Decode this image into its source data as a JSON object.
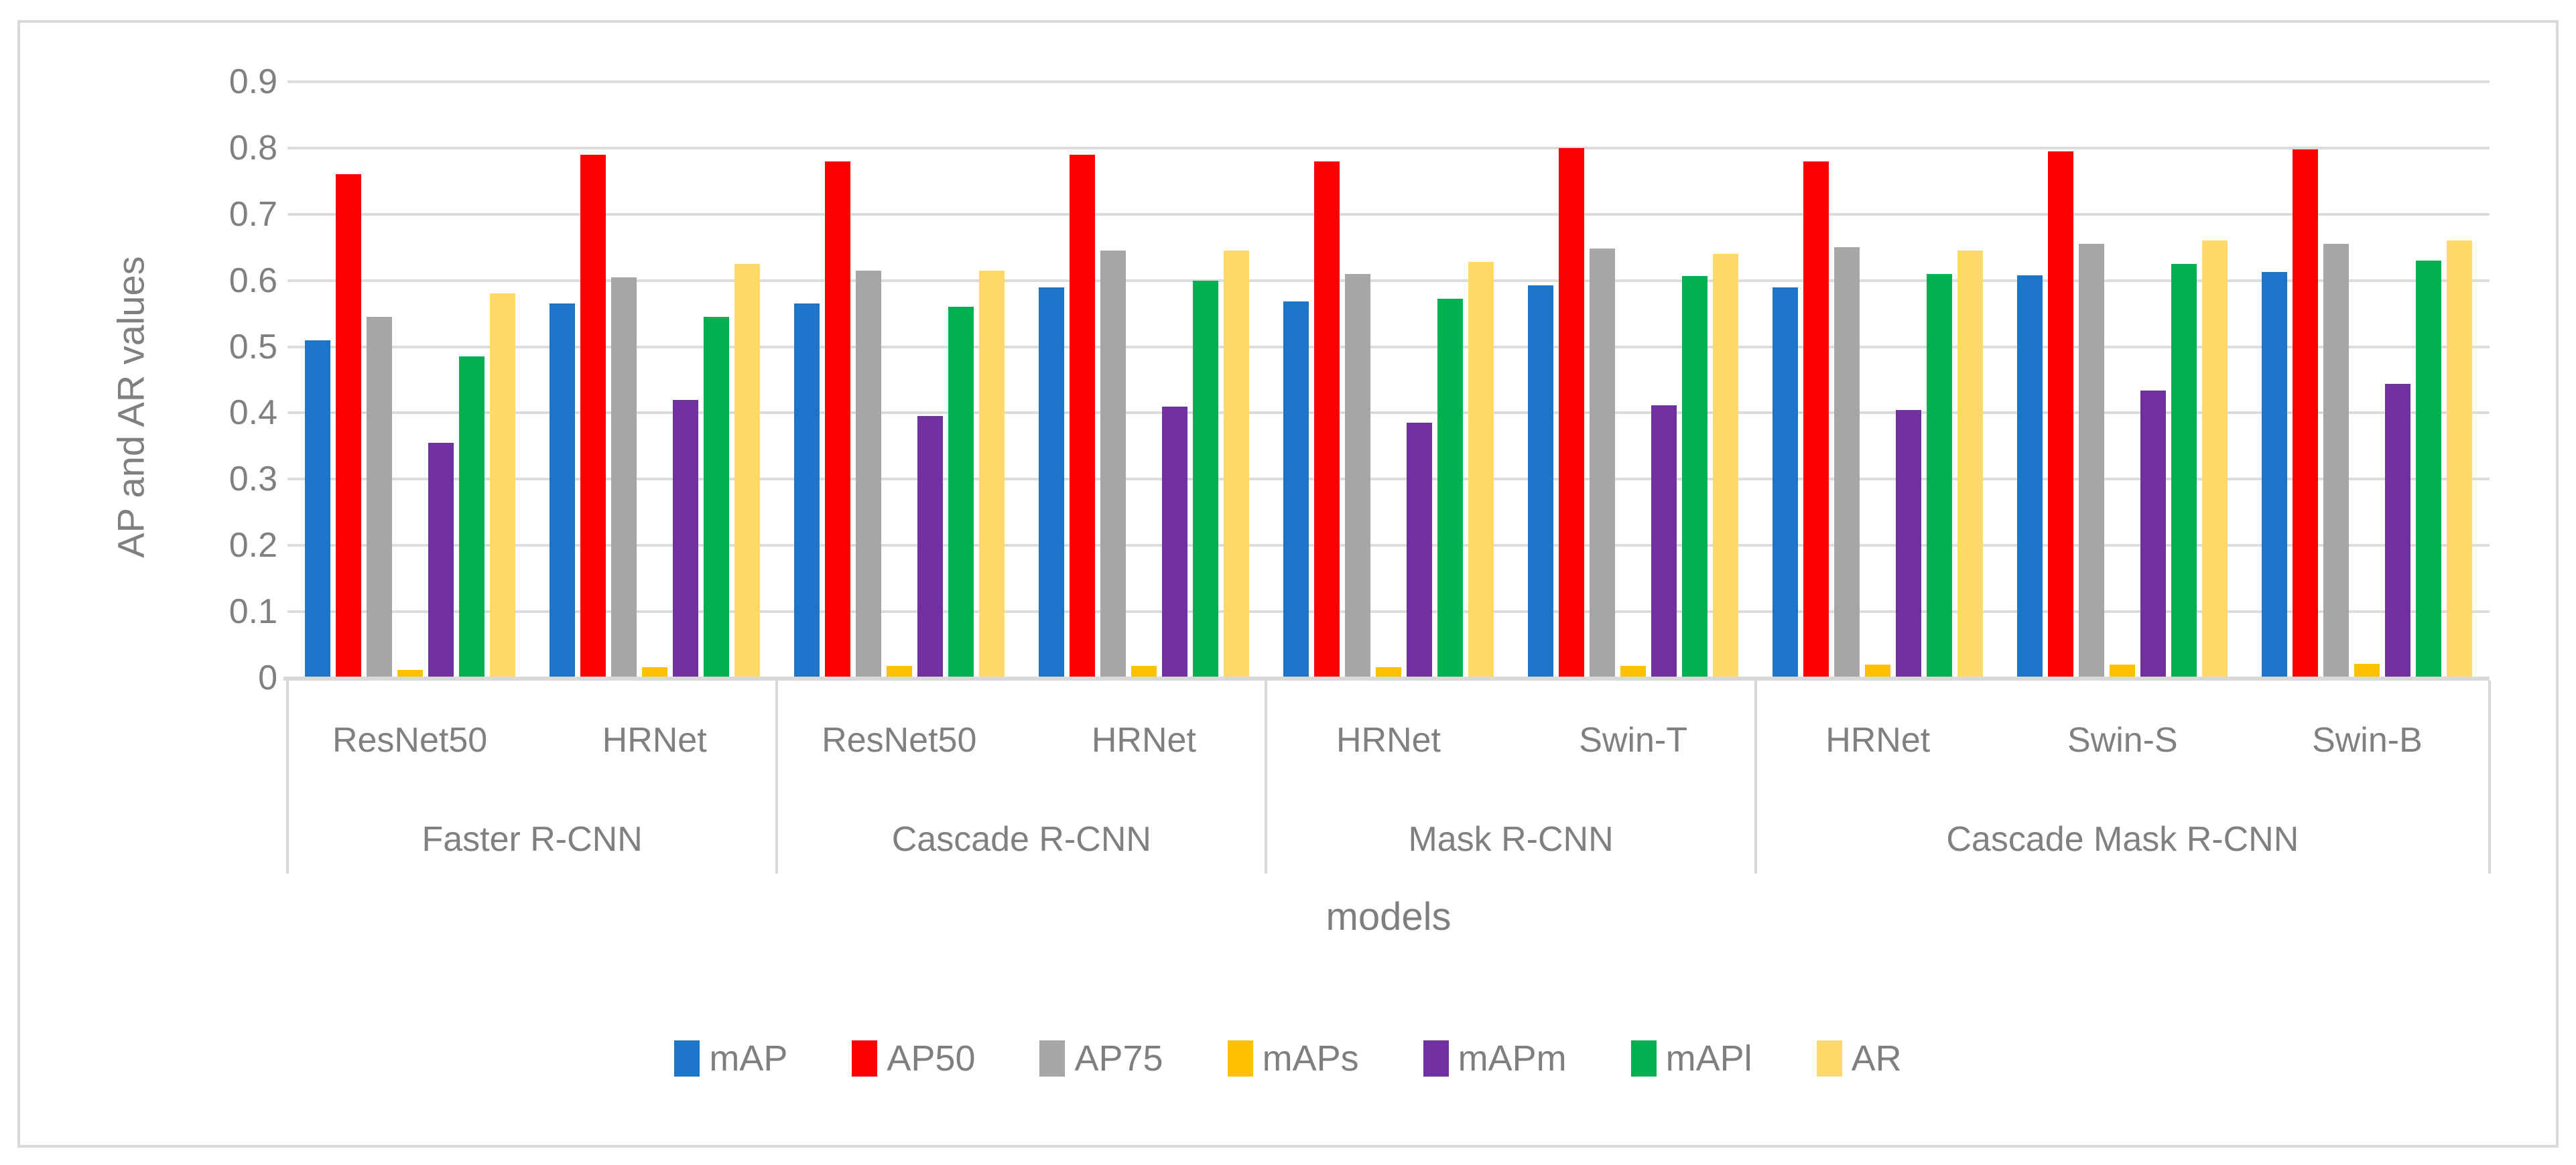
{
  "chart_data": {
    "type": "bar",
    "title": "",
    "ylabel": "AP and AR values",
    "xlabel": "models",
    "ylim": [
      0,
      0.9
    ],
    "grid": true,
    "legend_position": "bottom-center",
    "yticks": [
      "0.9",
      "0.8",
      "0.7",
      "0.6",
      "0.5",
      "0.4",
      "0.3",
      "0.2",
      "0.1",
      "0"
    ],
    "groups": [
      {
        "backbone": "ResNet50",
        "model": "Faster R-CNN"
      },
      {
        "backbone": "HRNet",
        "model": "Faster R-CNN"
      },
      {
        "backbone": "ResNet50",
        "model": "Cascade R-CNN"
      },
      {
        "backbone": "HRNet",
        "model": "Cascade R-CNN"
      },
      {
        "backbone": "HRNet",
        "model": "Mask R-CNN"
      },
      {
        "backbone": "Swin-T",
        "model": "Mask R-CNN"
      },
      {
        "backbone": "HRNet",
        "model": "Cascade Mask R-CNN"
      },
      {
        "backbone": "Swin-S",
        "model": "Cascade Mask R-CNN"
      },
      {
        "backbone": "Swin-B",
        "model": "Cascade Mask R-CNN"
      }
    ],
    "supergroups": [
      {
        "label": "Faster R-CNN",
        "span": 2
      },
      {
        "label": "Cascade R-CNN",
        "span": 2
      },
      {
        "label": "Mask R-CNN",
        "span": 2
      },
      {
        "label": "Cascade Mask R-CNN",
        "span": 3
      }
    ],
    "series": [
      {
        "name": "mAP",
        "color": "#1c75c8",
        "values": [
          0.51,
          0.565,
          0.565,
          0.59,
          0.568,
          0.593,
          0.59,
          0.608,
          0.613
        ]
      },
      {
        "name": "AP50",
        "color": "#fe0000",
        "values": [
          0.76,
          0.79,
          0.78,
          0.79,
          0.78,
          0.8,
          0.78,
          0.795,
          0.798
        ]
      },
      {
        "name": "AP75",
        "color": "#a6a6a6",
        "values": [
          0.545,
          0.605,
          0.615,
          0.645,
          0.61,
          0.648,
          0.65,
          0.655,
          0.655
        ]
      },
      {
        "name": "mAPs",
        "color": "#ffc000",
        "values": [
          0.012,
          0.016,
          0.018,
          0.018,
          0.016,
          0.018,
          0.02,
          0.02,
          0.021
        ]
      },
      {
        "name": "mAPm",
        "color": "#7030a0",
        "values": [
          0.355,
          0.42,
          0.395,
          0.41,
          0.385,
          0.412,
          0.405,
          0.434,
          0.444
        ]
      },
      {
        "name": "mAPl",
        "color": "#00b050",
        "values": [
          0.485,
          0.545,
          0.56,
          0.6,
          0.572,
          0.607,
          0.61,
          0.625,
          0.63
        ]
      },
      {
        "name": "AR",
        "color": "#ffd966",
        "values": [
          0.58,
          0.625,
          0.615,
          0.645,
          0.628,
          0.64,
          0.645,
          0.66,
          0.66
        ]
      }
    ],
    "colors": {
      "gridline": "#dcdcdc",
      "axis_line": "#d9d9d9",
      "text": "#808080",
      "border": "#d9d9d9"
    }
  }
}
